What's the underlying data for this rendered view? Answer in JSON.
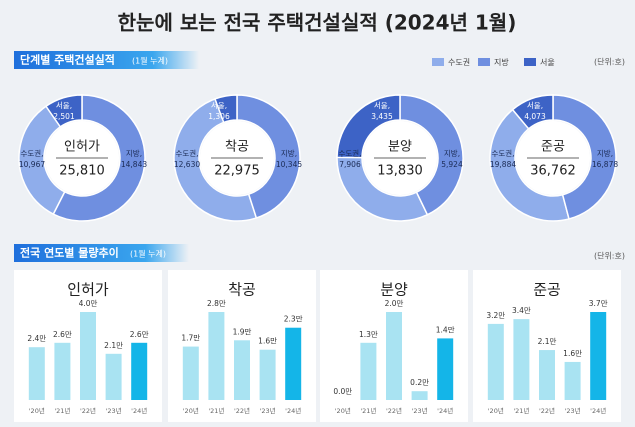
{
  "title": "한눈에 보는 전국 주택건설실적 (2024년 1월)",
  "sections": [
    {
      "heading": "단계별 주택건설실적",
      "note": "(1월 누계)",
      "unit": "(단위:호)",
      "legend": [
        {
          "name": "수도권",
          "color": "#8fadeb"
        },
        {
          "name": "지방",
          "color": "#6f8fe0"
        },
        {
          "name": "서울",
          "color": "#3d63c6"
        }
      ]
    },
    {
      "heading": "전국 연도별 물량추이",
      "note": "(1월 누계)",
      "unit": "(단위:호)"
    }
  ],
  "chart_data": [
    {
      "type": "donut",
      "title": "인허가",
      "total": 25810,
      "total_label": "25,810",
      "categories": [
        "수도권,",
        "지방,",
        "서울,"
      ],
      "values": [
        10967,
        14843,
        2501
      ],
      "value_labels": [
        "10,967",
        "14,843",
        "2,501"
      ]
    },
    {
      "type": "donut",
      "title": "착공",
      "total": 22975,
      "total_label": "22,975",
      "categories": [
        "수도권,",
        "지방,",
        "서울,"
      ],
      "values": [
        12630,
        10345,
        1306
      ],
      "value_labels": [
        "12,630",
        "10,345",
        "1,306"
      ]
    },
    {
      "type": "donut",
      "title": "분양",
      "total": 13830,
      "total_label": "13,830",
      "categories": [
        "수도권,",
        "지방,",
        "서울,"
      ],
      "values": [
        7906,
        5924,
        3435
      ],
      "value_labels": [
        "7,906",
        "5,924",
        "3,435"
      ]
    },
    {
      "type": "donut",
      "title": "준공",
      "total": 36762,
      "total_label": "36,762",
      "categories": [
        "수도권,",
        "지방,",
        "서울,"
      ],
      "values": [
        19884,
        16878,
        4073
      ],
      "value_labels": [
        "19,884",
        "16,878",
        "4,073"
      ]
    },
    {
      "type": "bar",
      "title": "인허가",
      "categories": [
        "'20년",
        "'21년",
        "'22년",
        "'23년",
        "'24년"
      ],
      "values": [
        2.4,
        2.6,
        4.0,
        2.1,
        2.6
      ],
      "value_labels": [
        "2.4만",
        "2.6만",
        "4.0만",
        "2.1만",
        "2.6만"
      ],
      "colors": [
        "#a9e3f2",
        "#a9e3f2",
        "#a9e3f2",
        "#a9e3f2",
        "#14b5e8"
      ]
    },
    {
      "type": "bar",
      "title": "착공",
      "categories": [
        "'20년",
        "'21년",
        "'22년",
        "'23년",
        "'24년"
      ],
      "values": [
        1.7,
        2.8,
        1.9,
        1.6,
        2.3
      ],
      "value_labels": [
        "1.7만",
        "2.8만",
        "1.9만",
        "1.6만",
        "2.3만"
      ],
      "colors": [
        "#a9e3f2",
        "#a9e3f2",
        "#a9e3f2",
        "#a9e3f2",
        "#14b5e8"
      ]
    },
    {
      "type": "bar",
      "title": "분양",
      "categories": [
        "'20년",
        "'21년",
        "'22년",
        "'23년",
        "'24년"
      ],
      "values": [
        0.0,
        1.3,
        2.0,
        0.2,
        1.4
      ],
      "value_labels": [
        "0.0만",
        "1.3만",
        "2.0만",
        "0.2만",
        "1.4만"
      ],
      "colors": [
        "#a9e3f2",
        "#a9e3f2",
        "#a9e3f2",
        "#a9e3f2",
        "#14b5e8"
      ]
    },
    {
      "type": "bar",
      "title": "준공",
      "categories": [
        "'20년",
        "'21년",
        "'22년",
        "'23년",
        "'24년"
      ],
      "values": [
        3.2,
        3.4,
        2.1,
        1.6,
        3.7
      ],
      "value_labels": [
        "3.2만",
        "3.4만",
        "2.1만",
        "1.6만",
        "3.7만"
      ],
      "colors": [
        "#a9e3f2",
        "#a9e3f2",
        "#a9e3f2",
        "#a9e3f2",
        "#14b5e8"
      ]
    }
  ]
}
